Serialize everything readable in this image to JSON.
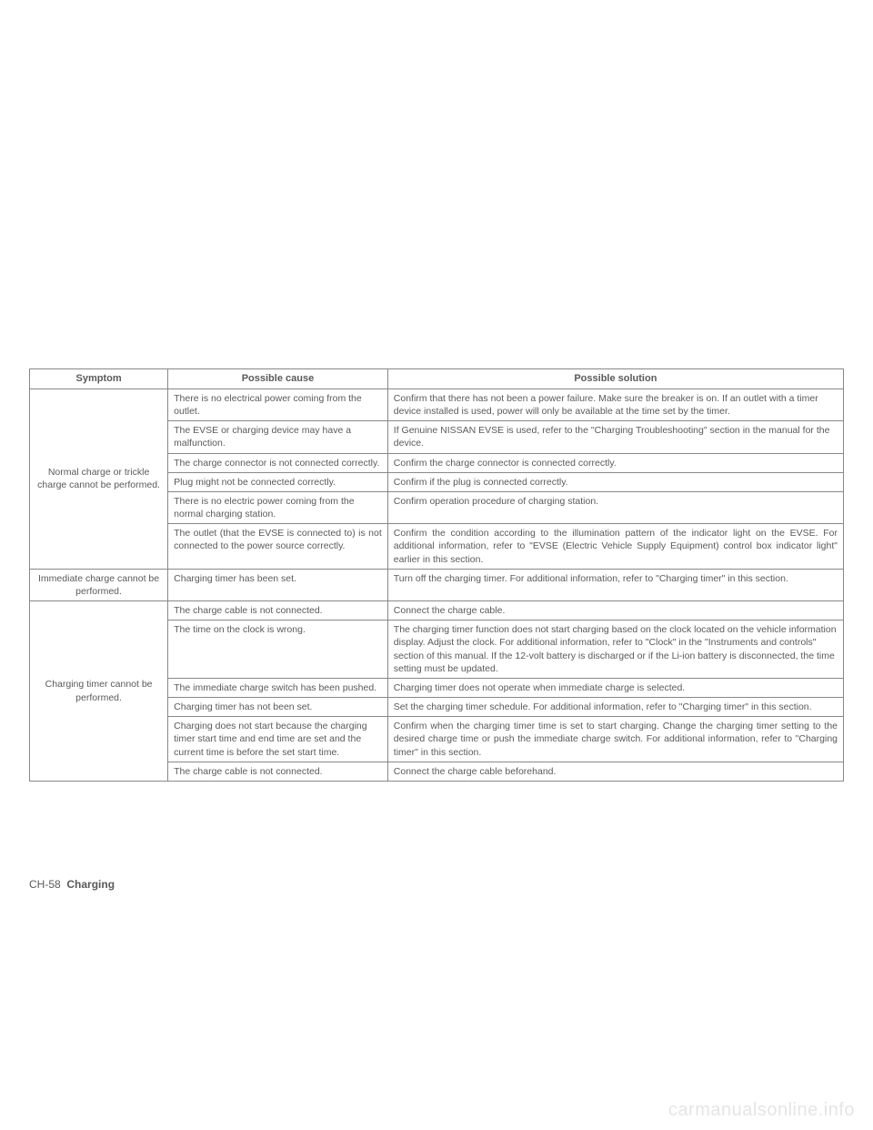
{
  "table": {
    "headers": {
      "symptom": "Symptom",
      "cause": "Possible cause",
      "solution": "Possible solution"
    },
    "groups": [
      {
        "symptom": "Normal charge or trickle charge cannot be performed.",
        "rows": [
          {
            "cause": "There is no electrical power coming from the outlet.",
            "solution": "Confirm that there has not been a power failure. Make sure the breaker is on. If an outlet with a timer device installed is used, power will only be available at the time set by the timer."
          },
          {
            "cause": "The EVSE or charging device may have a malfunction.",
            "solution": "If Genuine NISSAN EVSE is used, refer to the \"Charging Troubleshooting\" section in the manual for the device."
          },
          {
            "cause": "The charge connector is not connected correctly.",
            "solution": "Confirm the charge connector is connected correctly."
          },
          {
            "cause": "Plug might not be connected correctly.",
            "solution": "Confirm if the plug is connected correctly."
          },
          {
            "cause": "There is no electric power coming from the normal charging station.",
            "solution": "Confirm operation procedure of charging station."
          },
          {
            "cause": "The outlet (that the EVSE is connected to) is not connected to the power source correctly.",
            "solution": "Confirm the condition according to the illumination pattern of the indicator light on the EVSE. For additional information, refer to \"EVSE (Electric Vehicle Supply Equipment) control box indicator light\" earlier in this section.",
            "justify": true
          }
        ]
      },
      {
        "symptom": "Immediate charge cannot be performed.",
        "rows": [
          {
            "cause": "Charging timer has been set.",
            "solution": "Turn off the charging timer. For additional information, refer to \"Charging timer\" in this section.",
            "justify_sol": true
          }
        ]
      },
      {
        "symptom": "Charging timer cannot be performed.",
        "rows": [
          {
            "cause": "The charge cable is not connected.",
            "solution": "Connect the charge cable."
          },
          {
            "cause": "The time on the clock is wrong.",
            "solution": "The charging timer function does not start charging based on the clock located on the vehicle information display. Adjust the clock. For additional information, refer to \"Clock\" in the \"Instruments and controls\" section of this manual. If the 12-volt battery is discharged or if the Li-ion battery is disconnected, the time setting must be updated."
          },
          {
            "cause": "The immediate charge switch has been pushed.",
            "solution": "Charging timer does not operate when immediate charge is selected."
          },
          {
            "cause": "Charging timer has not been set.",
            "solution": "Set the charging timer schedule. For additional information, refer to \"Charging timer\" in this section."
          },
          {
            "cause": "Charging does not start because the charging timer start time and end time are set and the current time is before the set start time.",
            "solution": "Confirm when the charging timer time is set to start charging. Change the charging timer setting to the desired charge time or push the immediate charge switch. For additional information, refer to \"Charging timer\" in this section.",
            "justify_sol": true
          },
          {
            "cause": "The charge cable is not connected.",
            "solution": "Connect the charge cable beforehand."
          }
        ]
      }
    ]
  },
  "footer": {
    "page_num": "CH-58",
    "section": "Charging"
  },
  "watermark": "carmanualsonline.info"
}
